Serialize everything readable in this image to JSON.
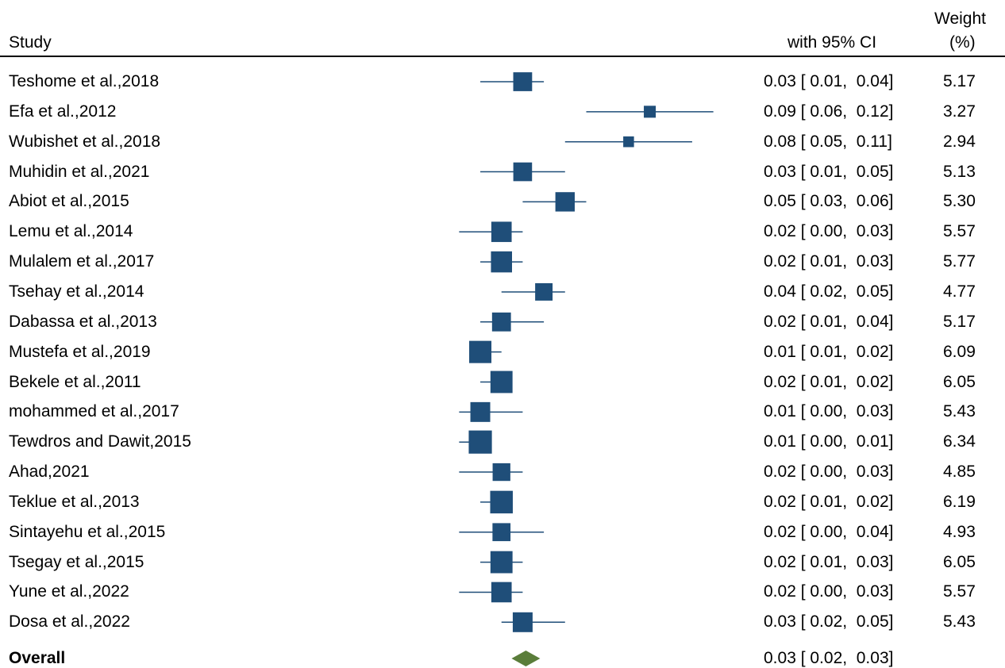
{
  "header": {
    "study_label": "Study",
    "ci_label": "with 95% CI",
    "weight_label_line1": "Weight",
    "weight_label_line2": "(%)"
  },
  "colors": {
    "study_marker": "#1f4e79",
    "overall_marker": "#5a7d3a"
  },
  "chart_data": {
    "type": "forest",
    "xlim": [
      -0.005,
      0.14
    ],
    "studies": [
      {
        "name": "Teshome et al.,2018",
        "est": 0.03,
        "lo": 0.01,
        "hi": 0.04,
        "weight": "5.17",
        "label": "0.03 [ 0.01,  0.04]"
      },
      {
        "name": "Efa et al.,2012",
        "est": 0.09,
        "lo": 0.06,
        "hi": 0.12,
        "weight": "3.27",
        "label": "0.09 [ 0.06,  0.12]"
      },
      {
        "name": "Wubishet et al.,2018",
        "est": 0.08,
        "lo": 0.05,
        "hi": 0.11,
        "weight": "2.94",
        "label": "0.08 [ 0.05,  0.11]"
      },
      {
        "name": "Muhidin et al.,2021",
        "est": 0.03,
        "lo": 0.01,
        "hi": 0.05,
        "weight": "5.13",
        "label": "0.03 [ 0.01,  0.05]"
      },
      {
        "name": "Abiot et al.,2015",
        "est": 0.05,
        "lo": 0.03,
        "hi": 0.06,
        "weight": "5.30",
        "label": "0.05 [ 0.03,  0.06]"
      },
      {
        "name": "Lemu et al.,2014",
        "est": 0.02,
        "lo": 0.0,
        "hi": 0.03,
        "weight": "5.57",
        "label": "0.02 [ 0.00,  0.03]"
      },
      {
        "name": "Mulalem et al.,2017",
        "est": 0.02,
        "lo": 0.01,
        "hi": 0.03,
        "weight": "5.77",
        "label": "0.02 [ 0.01,  0.03]"
      },
      {
        "name": "Tsehay et al.,2014",
        "est": 0.04,
        "lo": 0.02,
        "hi": 0.05,
        "weight": "4.77",
        "label": "0.04 [ 0.02,  0.05]"
      },
      {
        "name": "Dabassa et al.,2013",
        "est": 0.02,
        "lo": 0.01,
        "hi": 0.04,
        "weight": "5.17",
        "label": "0.02 [ 0.01,  0.04]"
      },
      {
        "name": "Mustefa et al.,2019",
        "est": 0.01,
        "lo": 0.01,
        "hi": 0.02,
        "weight": "6.09",
        "label": "0.01 [ 0.01,  0.02]"
      },
      {
        "name": "Bekele et al.,2011",
        "est": 0.02,
        "lo": 0.01,
        "hi": 0.02,
        "weight": "6.05",
        "label": "0.02 [ 0.01,  0.02]"
      },
      {
        "name": "mohammed et al.,2017",
        "est": 0.01,
        "lo": 0.0,
        "hi": 0.03,
        "weight": "5.43",
        "label": "0.01 [ 0.00,  0.03]"
      },
      {
        "name": "Tewdros and Dawit,2015",
        "est": 0.01,
        "lo": 0.0,
        "hi": 0.01,
        "weight": "6.34",
        "label": "0.01 [ 0.00,  0.01]"
      },
      {
        "name": "Ahad,2021",
        "est": 0.02,
        "lo": 0.0,
        "hi": 0.03,
        "weight": "4.85",
        "label": "0.02 [ 0.00,  0.03]"
      },
      {
        "name": "Teklue et al.,2013",
        "est": 0.02,
        "lo": 0.01,
        "hi": 0.02,
        "weight": "6.19",
        "label": "0.02 [ 0.01,  0.02]"
      },
      {
        "name": "Sintayehu et al.,2015",
        "est": 0.02,
        "lo": 0.0,
        "hi": 0.04,
        "weight": "4.93",
        "label": "0.02 [ 0.00,  0.04]"
      },
      {
        "name": "Tsegay et al.,2015",
        "est": 0.02,
        "lo": 0.01,
        "hi": 0.03,
        "weight": "6.05",
        "label": "0.02 [ 0.01,  0.03]"
      },
      {
        "name": "Yune et al.,2022",
        "est": 0.02,
        "lo": 0.0,
        "hi": 0.03,
        "weight": "5.57",
        "label": "0.02 [ 0.00,  0.03]"
      },
      {
        "name": "Dosa et al.,2022",
        "est": 0.03,
        "lo": 0.02,
        "hi": 0.05,
        "weight": "5.43",
        "label": "0.03 [ 0.02,  0.05]"
      }
    ],
    "overall": {
      "name": "Overall",
      "est": 0.03,
      "lo": 0.02,
      "hi": 0.03,
      "label": "0.03 [ 0.02,  0.03]"
    }
  }
}
